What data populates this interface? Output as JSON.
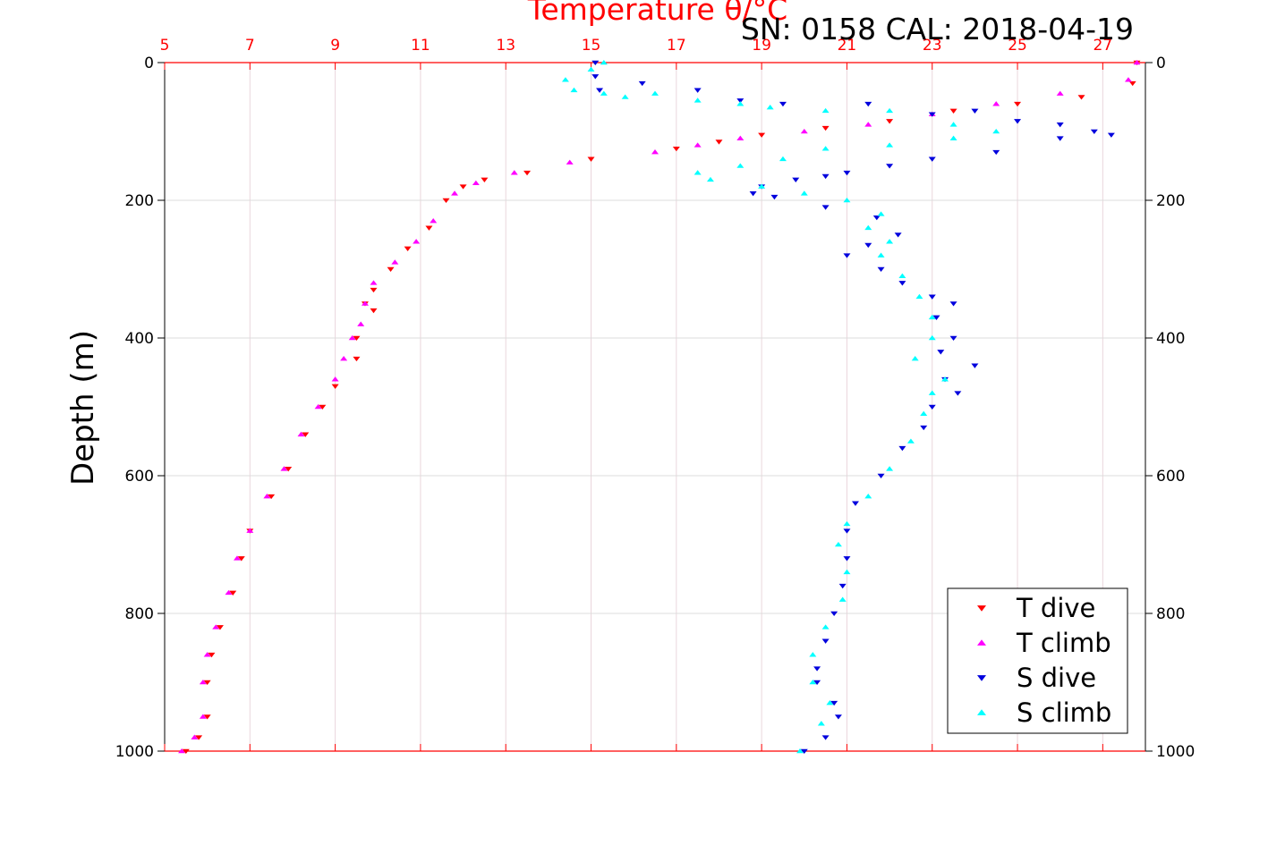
{
  "chart_data": {
    "type": "scatter",
    "title": "SN: 0158  CAL: 2018-04-19",
    "xlabel": "Temperature θ/°C",
    "ylabel": "Depth (m)",
    "xlim": [
      5,
      28
    ],
    "ylim": [
      1000,
      0
    ],
    "x_ticks": [
      "5",
      "7",
      "9",
      "11",
      "13",
      "15",
      "17",
      "19",
      "21",
      "23",
      "25",
      "27"
    ],
    "y_ticks": [
      "0",
      "200",
      "400",
      "600",
      "800",
      "1000"
    ],
    "grid": true,
    "legend_position": "bottom-right",
    "colors": {
      "t_axis": "#ff0000",
      "t_dive": "#ff0000",
      "t_climb": "#ff00ff",
      "s_dive": "#0000dd",
      "s_climb": "#00ffff"
    },
    "series": [
      {
        "name": "T dive",
        "marker": "triangle-down",
        "x": [
          27.8,
          27.7,
          26.5,
          25.0,
          23.5,
          22.0,
          20.5,
          19.0,
          18.0,
          17.0,
          15.0,
          13.5,
          12.5,
          12.0,
          11.6,
          11.2,
          10.7,
          10.3,
          9.9,
          9.7,
          9.9,
          9.5,
          9.5,
          9.0,
          8.7,
          8.3,
          7.9,
          7.5,
          7.0,
          6.8,
          6.6,
          6.3,
          6.1,
          6.0,
          6.0,
          5.8,
          5.5
        ],
        "y": [
          0,
          30,
          50,
          60,
          70,
          85,
          95,
          105,
          115,
          125,
          140,
          160,
          170,
          180,
          200,
          240,
          270,
          300,
          330,
          350,
          360,
          400,
          430,
          470,
          500,
          540,
          590,
          630,
          680,
          720,
          770,
          820,
          860,
          900,
          950,
          980,
          1000
        ]
      },
      {
        "name": "T climb",
        "marker": "triangle-up",
        "x": [
          27.8,
          27.6,
          26.0,
          24.5,
          23.0,
          21.5,
          20.0,
          18.5,
          17.5,
          16.5,
          14.5,
          13.2,
          12.3,
          11.8,
          11.3,
          10.9,
          10.4,
          9.9,
          9.7,
          9.6,
          9.4,
          9.2,
          9.0,
          8.6,
          8.2,
          7.8,
          7.4,
          7.0,
          6.7,
          6.5,
          6.2,
          6.0,
          5.9,
          5.9,
          5.7,
          5.4
        ],
        "y": [
          0,
          25,
          45,
          60,
          75,
          90,
          100,
          110,
          120,
          130,
          145,
          160,
          175,
          190,
          230,
          260,
          290,
          320,
          350,
          380,
          400,
          430,
          460,
          500,
          540,
          590,
          630,
          680,
          720,
          770,
          820,
          860,
          900,
          950,
          980,
          1000
        ]
      },
      {
        "name": "S dive",
        "marker": "triangle-down",
        "x": [
          15.1,
          15.1,
          15.2,
          16.2,
          17.5,
          18.5,
          19.5,
          21.5,
          23.0,
          24.0,
          25.0,
          26.0,
          26.8,
          27.2,
          26.0,
          24.5,
          23.0,
          22.0,
          21.0,
          20.5,
          19.8,
          19.0,
          18.8,
          19.3,
          20.5,
          21.7,
          22.2,
          21.5,
          21.0,
          21.8,
          22.3,
          23.0,
          23.5,
          23.1,
          23.5,
          23.2,
          24.0,
          23.3,
          23.6,
          23.0,
          22.8,
          22.3,
          21.8,
          21.2,
          21.0,
          21.0,
          20.9,
          20.7,
          20.5,
          20.3,
          20.3,
          20.7,
          20.8,
          20.5,
          20.0
        ],
        "y": [
          0,
          20,
          40,
          30,
          40,
          55,
          60,
          60,
          75,
          70,
          85,
          90,
          100,
          105,
          110,
          130,
          140,
          150,
          160,
          165,
          170,
          180,
          190,
          195,
          210,
          225,
          250,
          265,
          280,
          300,
          320,
          340,
          350,
          370,
          400,
          420,
          440,
          460,
          480,
          500,
          530,
          560,
          600,
          640,
          680,
          720,
          760,
          800,
          840,
          880,
          900,
          930,
          950,
          980,
          1000
        ]
      },
      {
        "name": "S climb",
        "marker": "triangle-up",
        "x": [
          15.3,
          15.0,
          14.4,
          14.6,
          15.3,
          15.8,
          16.5,
          17.5,
          18.5,
          19.2,
          20.5,
          22.0,
          23.5,
          24.5,
          23.5,
          22.0,
          20.5,
          19.5,
          18.5,
          17.5,
          17.8,
          19.0,
          20.0,
          21.0,
          21.8,
          21.5,
          22.0,
          21.8,
          22.3,
          22.7,
          23.0,
          23.0,
          22.6,
          23.3,
          23.0,
          22.8,
          22.5,
          22.0,
          21.5,
          21.0,
          20.8,
          21.0,
          20.9,
          20.5,
          20.2,
          20.2,
          20.6,
          20.4,
          19.9
        ],
        "y": [
          0,
          10,
          25,
          40,
          45,
          50,
          45,
          55,
          60,
          65,
          70,
          70,
          90,
          100,
          110,
          120,
          125,
          140,
          150,
          160,
          170,
          180,
          190,
          200,
          220,
          240,
          260,
          280,
          310,
          340,
          370,
          400,
          430,
          460,
          480,
          510,
          550,
          590,
          630,
          670,
          700,
          740,
          780,
          820,
          860,
          900,
          930,
          960,
          1000
        ]
      }
    ]
  }
}
